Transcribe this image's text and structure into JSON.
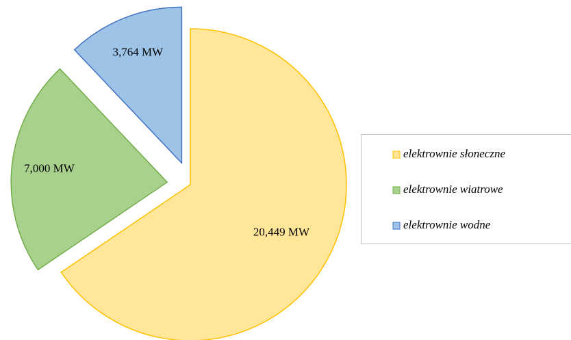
{
  "chart_data": {
    "type": "pie",
    "categories": [
      "elektrownie słoneczne",
      "elektrownie wiatrowe",
      "elektrownie wodne"
    ],
    "values": [
      20449,
      7000,
      3764
    ],
    "value_labels": [
      "20,449 MW",
      "7,000 MW",
      "3,764 MW"
    ],
    "colors": [
      "#FFE699",
      "#A9D18E",
      "#9DC3E6"
    ],
    "edge_colors": [
      "#FFC000",
      "#70AD47",
      "#4472C4"
    ],
    "legend": "right"
  }
}
